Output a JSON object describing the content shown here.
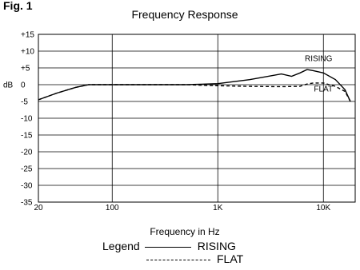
{
  "figure_label": "Fig. 1",
  "chart_data": {
    "type": "line",
    "title": "Frequency Response",
    "xlabel": "Frequency in Hz",
    "ylabel": "dB",
    "x_scale": "log",
    "xlim": [
      20,
      20000
    ],
    "ylim": [
      -35,
      15
    ],
    "y_ticks": [
      {
        "value": 15,
        "label": "+15"
      },
      {
        "value": 10,
        "label": "+10"
      },
      {
        "value": 5,
        "label": "+5"
      },
      {
        "value": 0,
        "label": "0"
      },
      {
        "value": -5,
        "label": "-5"
      },
      {
        "value": -10,
        "label": "-10"
      },
      {
        "value": -15,
        "label": "-15"
      },
      {
        "value": -20,
        "label": "-20"
      },
      {
        "value": -25,
        "label": "-25"
      },
      {
        "value": -30,
        "label": "-30"
      },
      {
        "value": -35,
        "label": "-35"
      }
    ],
    "x_ticks": [
      {
        "value": 20,
        "label": "20"
      },
      {
        "value": 100,
        "label": "100"
      },
      {
        "value": 1000,
        "label": "1K"
      },
      {
        "value": 10000,
        "label": "10K"
      }
    ],
    "grid": true,
    "series": [
      {
        "name": "RISING",
        "style": "solid",
        "points": [
          [
            20,
            -4.5
          ],
          [
            30,
            -2.5
          ],
          [
            45,
            -0.8
          ],
          [
            60,
            0
          ],
          [
            100,
            0
          ],
          [
            500,
            0
          ],
          [
            1000,
            0.3
          ],
          [
            2000,
            1.5
          ],
          [
            4000,
            3.2
          ],
          [
            5000,
            2.5
          ],
          [
            6000,
            3.5
          ],
          [
            7000,
            4.5
          ],
          [
            8000,
            4.2
          ],
          [
            10000,
            3.5
          ],
          [
            13000,
            1.5
          ],
          [
            16000,
            -1.5
          ],
          [
            18000,
            -5
          ]
        ]
      },
      {
        "name": "FLAT",
        "style": "dashed",
        "points": [
          [
            20,
            -4.5
          ],
          [
            30,
            -2.5
          ],
          [
            45,
            -0.8
          ],
          [
            60,
            0
          ],
          [
            100,
            0
          ],
          [
            500,
            0
          ],
          [
            1000,
            -0.3
          ],
          [
            2000,
            -0.5
          ],
          [
            4000,
            -0.6
          ],
          [
            6000,
            -0.5
          ],
          [
            7000,
            0.2
          ],
          [
            8000,
            0.5
          ],
          [
            10000,
            0.5
          ],
          [
            13000,
            -0.5
          ],
          [
            16000,
            -2
          ],
          [
            18000,
            -5
          ]
        ]
      }
    ],
    "annotations": [
      {
        "text": "RISING",
        "x": 9000,
        "y": 7
      },
      {
        "text": "FLAT",
        "x": 10000,
        "y": -2
      }
    ]
  },
  "legend": {
    "title": "Legend",
    "rising_label": "RISING",
    "flat_label": "FLAT"
  }
}
